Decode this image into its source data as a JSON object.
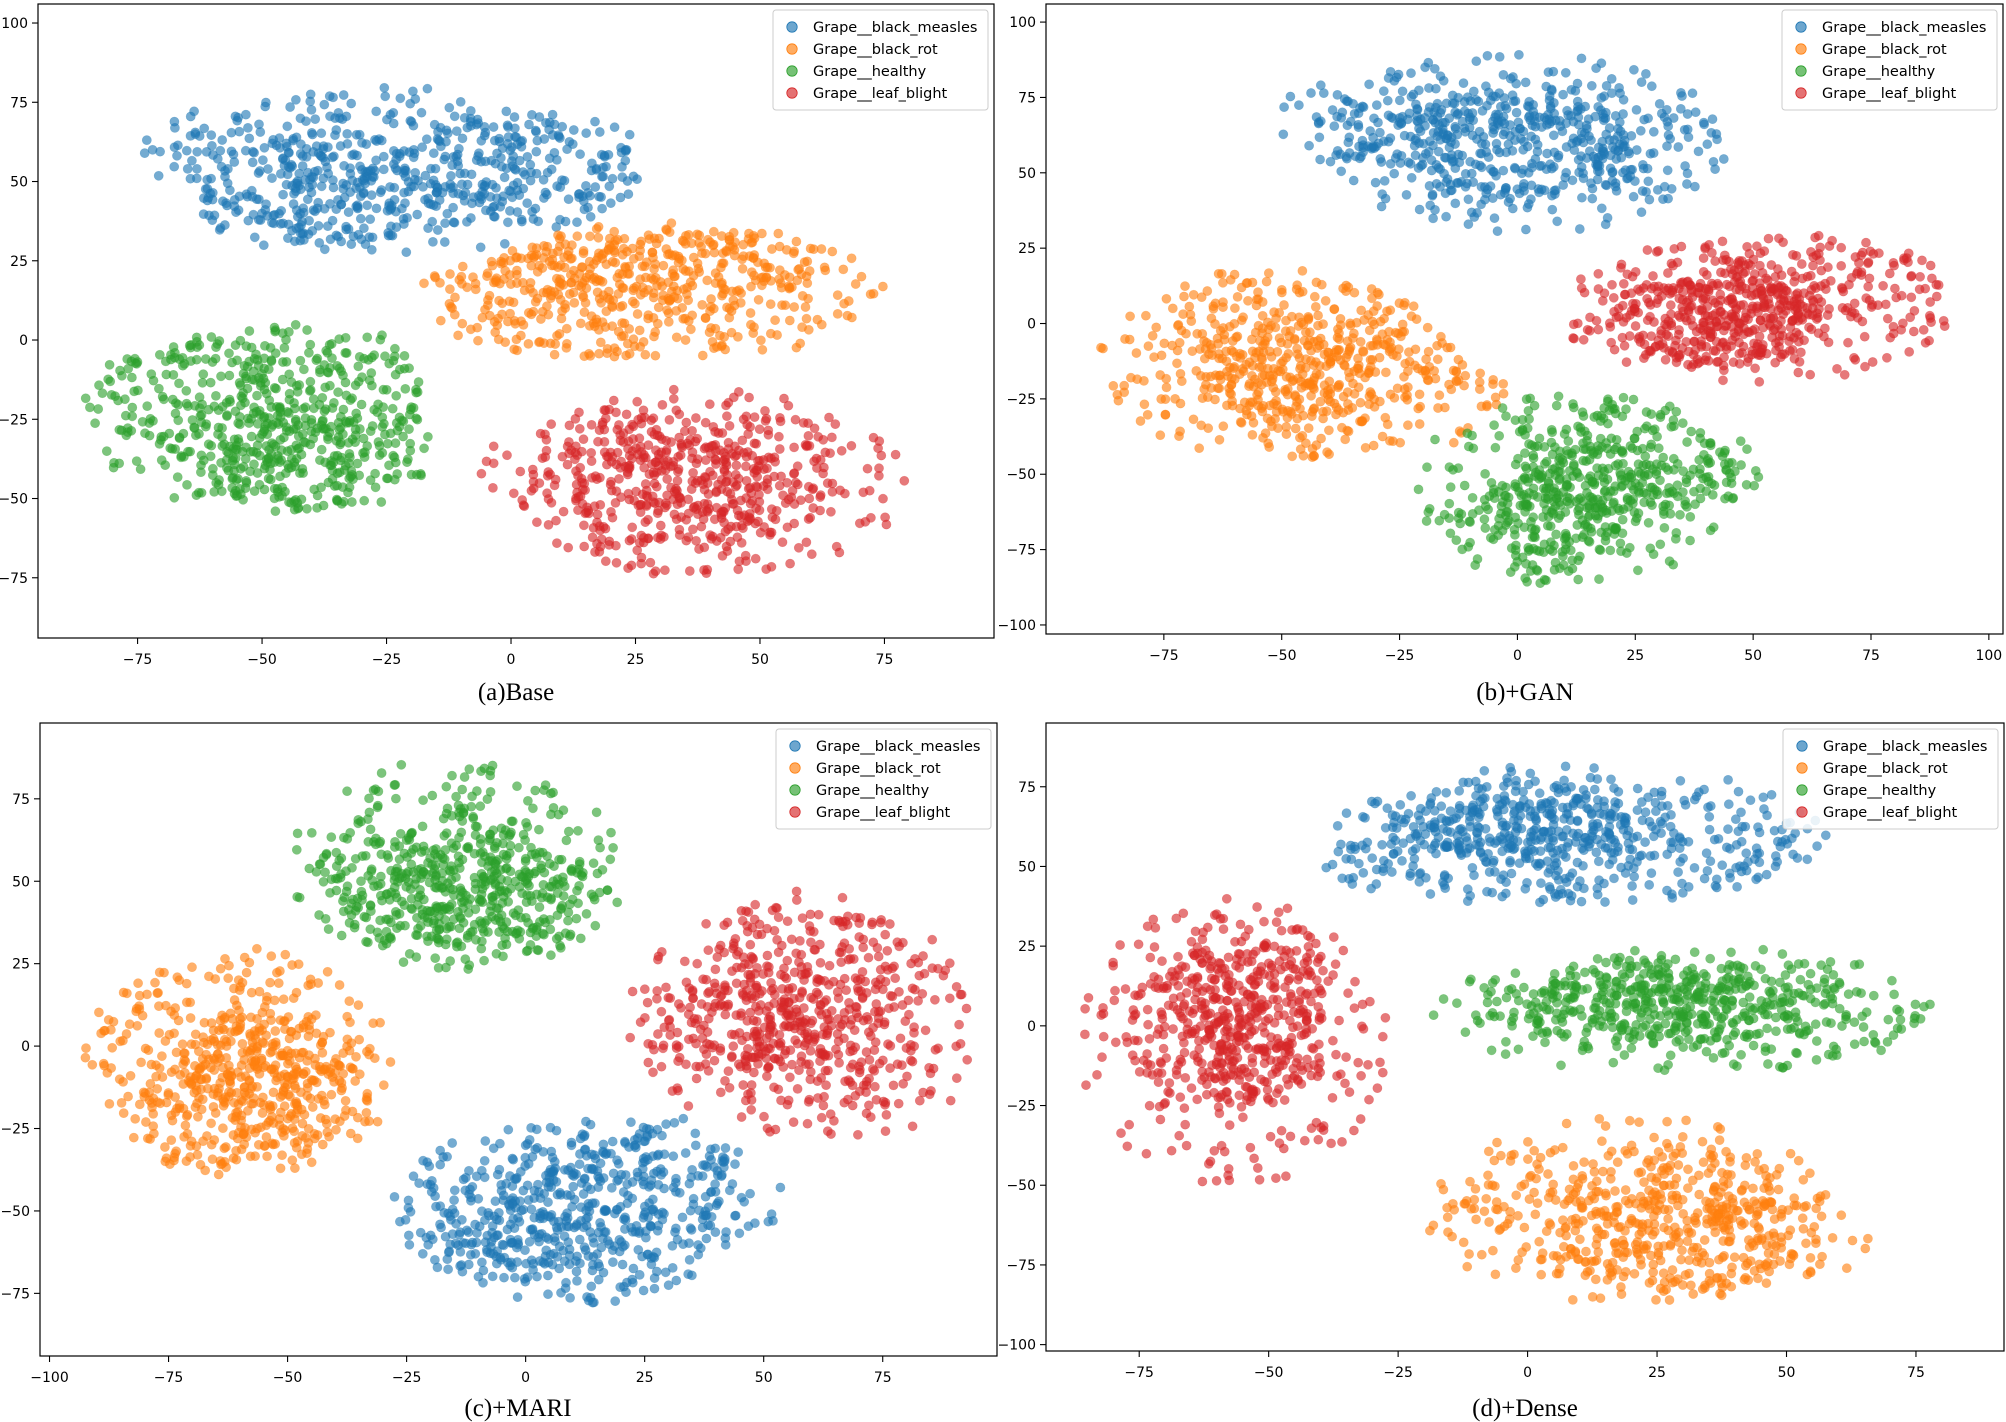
{
  "colors": {
    "Grape__black_measles": "#1f77b4",
    "Grape__black_rot": "#ff7f0e",
    "Grape__healthy": "#2ca02c",
    "Grape__leaf_blight": "#d62728"
  },
  "chart_data": [
    {
      "type": "scatter",
      "caption": "(a)Base",
      "xlim": [
        -95,
        97
      ],
      "ylim": [
        -94,
        106
      ],
      "xticks": [
        -75,
        -50,
        -25,
        0,
        25,
        50,
        75
      ],
      "yticks": [
        -75,
        -50,
        -25,
        0,
        25,
        50,
        75,
        100
      ],
      "legend": [
        "Grape__black_measles",
        "Grape__black_rot",
        "Grape__healthy",
        "Grape__leaf_blight"
      ],
      "legend_loc": "top-right",
      "clusters": [
        {
          "name": "Grape__black_measles",
          "cx": -20,
          "cy": 55,
          "rx": 48,
          "ry": 25,
          "n": 650
        },
        {
          "name": "Grape__black_rot",
          "cx": 30,
          "cy": 15,
          "rx": 45,
          "ry": 22,
          "n": 560
        },
        {
          "name": "Grape__healthy",
          "cx": -50,
          "cy": -25,
          "rx": 35,
          "ry": 30,
          "n": 620
        },
        {
          "name": "Grape__leaf_blight",
          "cx": 40,
          "cy": -45,
          "rx": 40,
          "ry": 30,
          "n": 600
        }
      ]
    },
    {
      "type": "scatter",
      "caption": "(b)+GAN",
      "xlim": [
        -100,
        103
      ],
      "ylim": [
        -103,
        106
      ],
      "xticks": [
        -75,
        -50,
        -25,
        0,
        25,
        50,
        75,
        100
      ],
      "yticks": [
        -100,
        -75,
        -50,
        -25,
        0,
        25,
        50,
        75,
        100
      ],
      "legend": [
        "Grape__black_measles",
        "Grape__black_rot",
        "Grape__healthy",
        "Grape__leaf_blight"
      ],
      "legend_loc": "top-right",
      "clusters": [
        {
          "name": "Grape__black_measles",
          "cx": 0,
          "cy": 60,
          "rx": 45,
          "ry": 30,
          "n": 620
        },
        {
          "name": "Grape__black_rot",
          "cx": -50,
          "cy": -15,
          "rx": 40,
          "ry": 30,
          "n": 600
        },
        {
          "name": "Grape__healthy",
          "cx": 12,
          "cy": -55,
          "rx": 35,
          "ry": 32,
          "n": 600
        },
        {
          "name": "Grape__leaf_blight",
          "cx": 50,
          "cy": 5,
          "rx": 42,
          "ry": 25,
          "n": 620
        }
      ]
    },
    {
      "type": "scatter",
      "caption": "(c)+MARI",
      "xlim": [
        -102,
        99
      ],
      "ylim": [
        -94,
        98
      ],
      "xticks": [
        -100,
        -75,
        -50,
        -25,
        0,
        25,
        50,
        75
      ],
      "yticks": [
        -75,
        -50,
        -25,
        0,
        25,
        50,
        75
      ],
      "legend": [
        "Grape__black_measles",
        "Grape__black_rot",
        "Grape__healthy",
        "Grape__leaf_blight"
      ],
      "legend_loc": "top-right",
      "clusters": [
        {
          "name": "Grape__black_measles",
          "cx": 10,
          "cy": -50,
          "rx": 38,
          "ry": 28,
          "n": 620
        },
        {
          "name": "Grape__black_rot",
          "cx": -60,
          "cy": -5,
          "rx": 32,
          "ry": 35,
          "n": 620
        },
        {
          "name": "Grape__healthy",
          "cx": -15,
          "cy": 55,
          "rx": 35,
          "ry": 32,
          "n": 620
        },
        {
          "name": "Grape__leaf_blight",
          "cx": 57,
          "cy": 8,
          "rx": 36,
          "ry": 35,
          "n": 640
        }
      ]
    },
    {
      "type": "scatter",
      "caption": "(d)+Dense",
      "xlim": [
        -93,
        92
      ],
      "ylim": [
        -102,
        95
      ],
      "xticks": [
        -75,
        -50,
        -25,
        0,
        25,
        50,
        75
      ],
      "yticks": [
        -100,
        -75,
        -50,
        -25,
        0,
        25,
        50,
        75
      ],
      "legend": [
        "Grape__black_measles",
        "Grape__black_rot",
        "Grape__healthy",
        "Grape__leaf_blight"
      ],
      "legend_loc": "top-right",
      "clusters": [
        {
          "name": "Grape__black_measles",
          "cx": 10,
          "cy": 60,
          "rx": 48,
          "ry": 22,
          "n": 620
        },
        {
          "name": "Grape__black_rot",
          "cx": 20,
          "cy": -58,
          "rx": 40,
          "ry": 30,
          "n": 600
        },
        {
          "name": "Grape__healthy",
          "cx": 30,
          "cy": 5,
          "rx": 50,
          "ry": 20,
          "n": 600
        },
        {
          "name": "Grape__leaf_blight",
          "cx": -57,
          "cy": -5,
          "rx": 30,
          "ry": 45,
          "n": 640
        }
      ]
    }
  ]
}
